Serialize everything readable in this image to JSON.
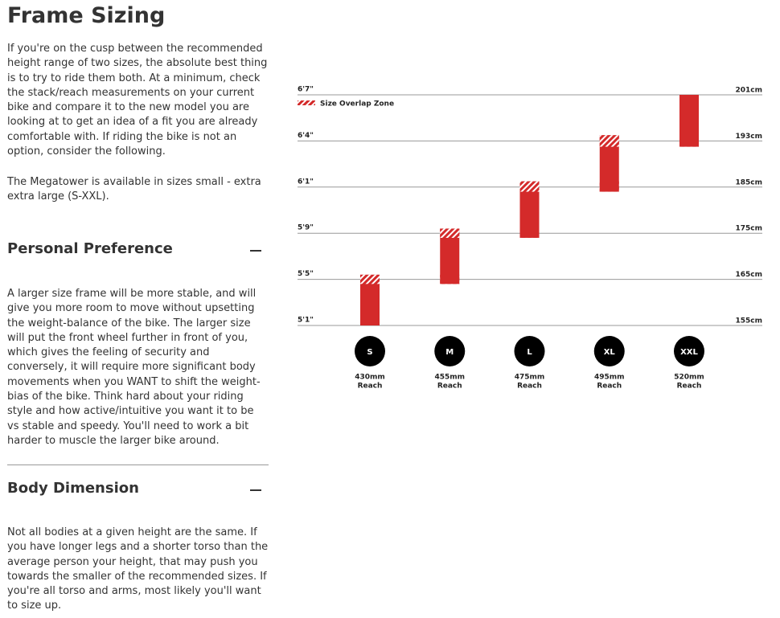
{
  "header": {
    "title": "Frame Sizing"
  },
  "intro": [
    "If you're on the cusp between the recommended height range of two sizes, the absolute best thing is to try to ride them both. At a minimum, check the stack/reach measurements on your current bike and compare it to the new model you are looking at to get an idea of a fit you are already comfortable with. If riding the bike is not an option, consider the following.",
    "The Megatower is available in sizes small - extra extra large (S-XXL)."
  ],
  "sections": [
    {
      "heading": "Personal Preference",
      "text": "A larger size frame will be more stable, and will give you more room to move without upsetting the weight-balance of the bike. The larger size will put the front wheel further in front of you, which gives the feeling of security and conversely, it will require more significant body movements when you WANT to shift the weight-bias of the bike. Think hard about your riding style and how active/intuitive you want it to be vs stable and speedy. You'll need to work a bit harder to muscle the larger bike around."
    },
    {
      "heading": "Body Dimension",
      "text": "Not all bodies at a given height are the same. If you have longer legs and a shorter torso than the average person your height, that may push you towards the smaller of the recommended sizes. If you're all torso and arms, most likely you'll want to size up."
    }
  ],
  "chart_data": {
    "type": "range_bar",
    "categories": [
      "S",
      "M",
      "L",
      "XL",
      "XXL"
    ],
    "reach": [
      "430mm",
      "455mm",
      "475mm",
      "495mm",
      "520mm"
    ],
    "reach_label": "Reach",
    "low": [
      155,
      164,
      174,
      184,
      192
    ],
    "high": [
      166,
      176,
      186,
      194,
      201
    ],
    "color": "#d42a2a",
    "legend": "Size Overlap Zone",
    "ylim": [
      155,
      201
    ],
    "yticks": [
      {
        "value": 155,
        "label": "5'1\""
      },
      {
        "value": 165,
        "label": "5'5\""
      },
      {
        "value": 175,
        "label": "5'9\""
      },
      {
        "value": 185,
        "label": "6'1\""
      },
      {
        "value": 193,
        "label": "6'4\""
      },
      {
        "value": 201,
        "label": "6'7\""
      }
    ],
    "y2lim": [
      155,
      201
    ],
    "y2ticks": [
      {
        "value": 155,
        "label": "155cm"
      },
      {
        "value": 165,
        "label": "165cm"
      },
      {
        "value": 175,
        "label": "175cm"
      },
      {
        "value": 185,
        "label": "185cm"
      },
      {
        "value": 193,
        "label": "193cm"
      },
      {
        "value": 201,
        "label": "201cm"
      }
    ],
    "grid": true
  }
}
